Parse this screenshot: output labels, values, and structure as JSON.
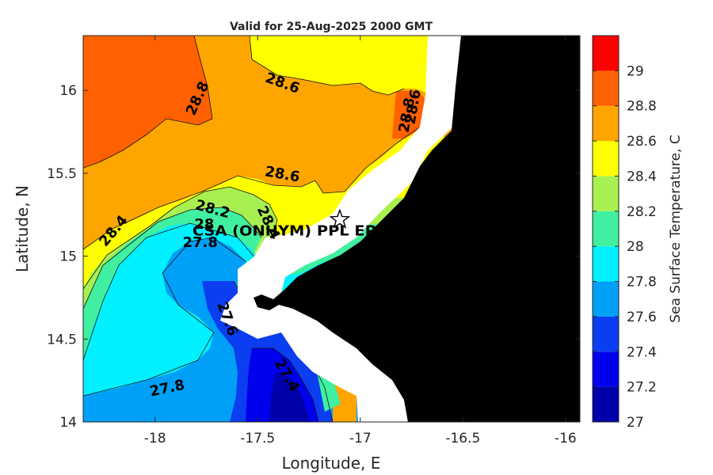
{
  "title": "Valid for 25-Aug-2025 2000 GMT",
  "map": {
    "xlabel": "Longitude, E",
    "ylabel": "Latitude, N",
    "xlim": [
      -18.35,
      -15.93
    ],
    "ylim": [
      14.0,
      16.33
    ],
    "x_ticks": [
      {
        "value": -18,
        "label": "-18"
      },
      {
        "value": -17.5,
        "label": "-17.5"
      },
      {
        "value": -17,
        "label": "-17"
      },
      {
        "value": -16.5,
        "label": "-16.5"
      },
      {
        "value": -16,
        "label": "-16"
      }
    ],
    "y_ticks": [
      {
        "value": 14,
        "label": "14"
      },
      {
        "value": 14.5,
        "label": "14.5"
      },
      {
        "value": 15,
        "label": "15"
      },
      {
        "value": 15.5,
        "label": "15.5"
      },
      {
        "value": 16,
        "label": "16"
      }
    ],
    "site": {
      "lon": -17.1,
      "lat": 15.22,
      "label": "CSA (ONHYM) PPL EP"
    },
    "contour_labels": [
      {
        "lon": -17.65,
        "lat": 14.62,
        "text": "27.6",
        "angle": 70
      },
      {
        "lon": -17.94,
        "lat": 14.2,
        "text": "27.8",
        "angle": -12
      },
      {
        "lon": -17.78,
        "lat": 15.08,
        "text": "27.8",
        "angle": 0
      },
      {
        "lon": -17.76,
        "lat": 15.19,
        "text": "28",
        "angle": 0
      },
      {
        "lon": -17.72,
        "lat": 15.28,
        "text": "28.2",
        "angle": 15
      },
      {
        "lon": -18.2,
        "lat": 15.15,
        "text": "28.4",
        "angle": -50
      },
      {
        "lon": -17.45,
        "lat": 15.2,
        "text": "28.4",
        "angle": 65
      },
      {
        "lon": -17.38,
        "lat": 15.49,
        "text": "28.6",
        "angle": 10
      },
      {
        "lon": -17.38,
        "lat": 16.04,
        "text": "28.6",
        "angle": 20
      },
      {
        "lon": -17.79,
        "lat": 15.95,
        "text": "28.8",
        "angle": -65
      },
      {
        "lon": -16.77,
        "lat": 15.85,
        "text": "28.8",
        "angle": -80
      },
      {
        "lon": -16.74,
        "lat": 15.9,
        "text": "28.6",
        "angle": -80
      },
      {
        "lon": -17.36,
        "lat": 14.28,
        "text": "27.4",
        "angle": 60
      }
    ]
  },
  "colorbar": {
    "label": "Sea Surface Temperature, C",
    "levels": [
      27,
      27.2,
      27.4,
      27.6,
      27.8,
      28,
      28.2,
      28.4,
      28.6,
      28.8,
      29,
      29.2
    ],
    "tick_labels": [
      "27",
      "27.2",
      "27.4",
      "27.6",
      "27.8",
      "28",
      "28.2",
      "28.4",
      "28.6",
      "28.8",
      "29"
    ],
    "colors": [
      "#0000aa",
      "#0000ee",
      "#0a3ef0",
      "#00a0f8",
      "#00f0ff",
      "#40f0a0",
      "#a8f050",
      "#ffff00",
      "#ffa500",
      "#ff6000",
      "#ff0000"
    ]
  }
}
